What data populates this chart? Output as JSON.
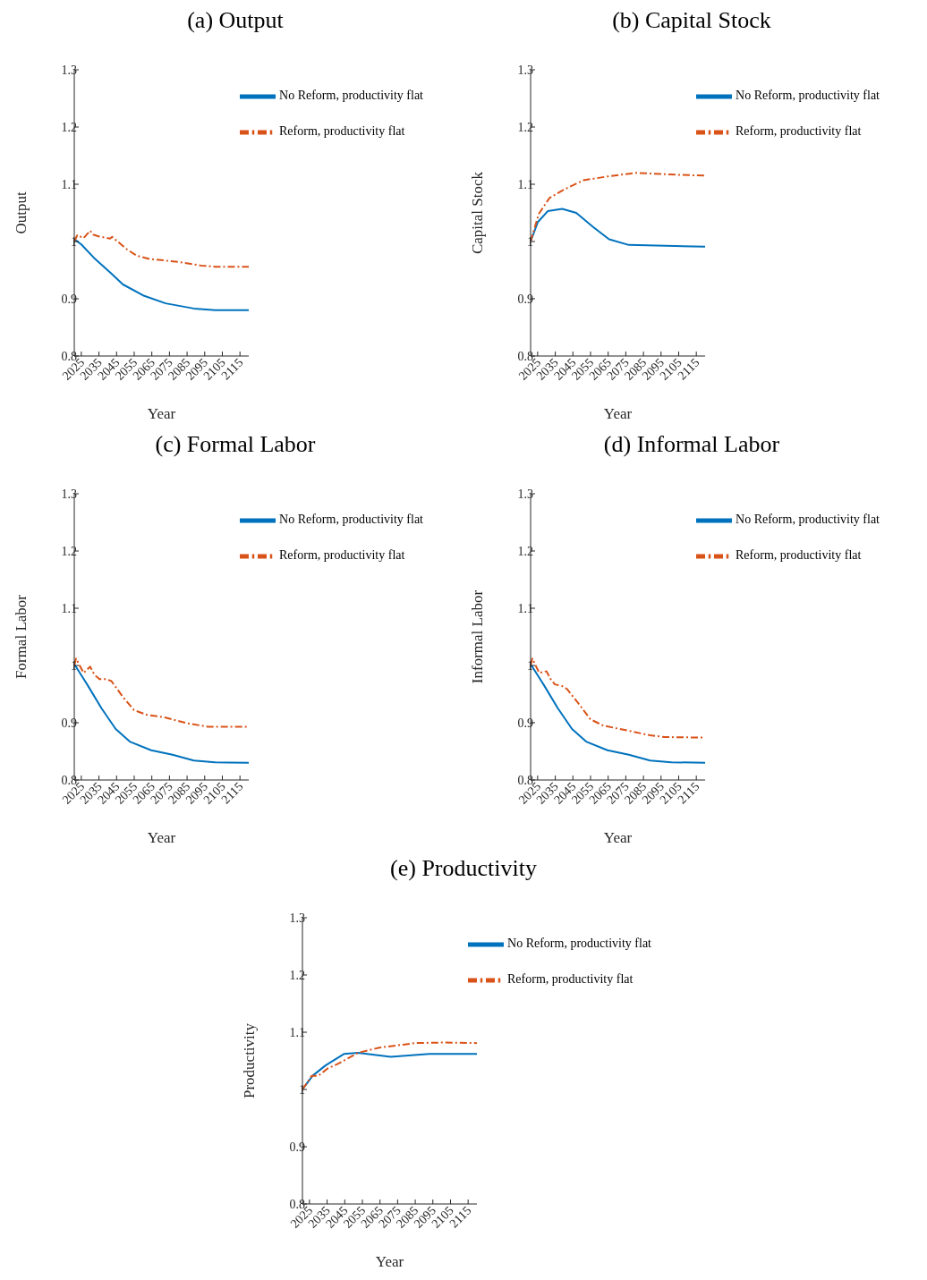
{
  "chart_data": [
    {
      "type": "line",
      "title": "(a) Output",
      "xlabel": "Year",
      "ylabel": "Output",
      "xlim": [
        2021,
        2120
      ],
      "xticks": [
        2025,
        2035,
        2045,
        2055,
        2065,
        2075,
        2085,
        2095,
        2105,
        2115
      ],
      "ylim": [
        0.8,
        1.3
      ],
      "yticks": [
        0.8,
        0.9,
        1,
        1.1,
        1.2,
        1.3
      ],
      "legend": "top right",
      "grid": false,
      "series": [
        {
          "name": "No Reform, productivity flat",
          "color": "#0072bd",
          "line_style": "solid",
          "x": [
            2021,
            2021.5,
            2025,
            2032,
            2042,
            2048.6,
            2060.7,
            2072.8,
            2088.8,
            2100.9,
            2120
          ],
          "values": [
            1.0,
            1.003,
            0.995,
            0.972,
            0.944,
            0.925,
            0.905,
            0.892,
            0.883,
            0.88,
            0.88
          ]
        },
        {
          "name": "Reform, productivity flat",
          "color": "#d95319",
          "line_style": "dashed",
          "x": [
            2021,
            2022.7,
            2026.3,
            2030,
            2031.7,
            2034.8,
            2041.3,
            2042.5,
            2051,
            2056.6,
            2063,
            2080.8,
            2092.9,
            2100.9,
            2120
          ],
          "values": [
            1.0,
            1.011,
            1.006,
            1.019,
            1.012,
            1.009,
            1.005,
            1.008,
            0.986,
            0.975,
            0.97,
            0.964,
            0.958,
            0.956,
            0.956
          ]
        }
      ]
    },
    {
      "type": "line",
      "title": "(b) Capital Stock",
      "xlabel": "Year",
      "ylabel": "Capital Stock",
      "xlim": [
        2021,
        2120
      ],
      "xticks": [
        2025,
        2035,
        2045,
        2055,
        2065,
        2075,
        2085,
        2095,
        2105,
        2115
      ],
      "ylim": [
        0.8,
        1.3
      ],
      "yticks": [
        0.8,
        0.9,
        1,
        1.1,
        1.2,
        1.3
      ],
      "legend": "top right",
      "grid": false,
      "series": [
        {
          "name": "No Reform, productivity flat",
          "color": "#0072bd",
          "line_style": "solid",
          "x": [
            2021,
            2025.1,
            2030.7,
            2038.9,
            2046.9,
            2056.6,
            2065.5,
            2076.7,
            2120
          ],
          "values": [
            1.0,
            1.034,
            1.053,
            1.057,
            1.05,
            1.025,
            1.004,
            0.994,
            0.991
          ]
        },
        {
          "name": "Reform, productivity flat",
          "color": "#d95319",
          "line_style": "dashed",
          "x": [
            2021,
            2025.6,
            2031.7,
            2038.9,
            2042.8,
            2051,
            2065.5,
            2080.8,
            2100.9,
            2120
          ],
          "values": [
            1.0,
            1.048,
            1.076,
            1.089,
            1.095,
            1.107,
            1.114,
            1.12,
            1.117,
            1.115
          ]
        }
      ]
    },
    {
      "type": "line",
      "title": "(c) Formal Labor",
      "xlabel": "Year",
      "ylabel": "Formal Labor",
      "xlim": [
        2021,
        2120
      ],
      "xticks": [
        2025,
        2035,
        2045,
        2055,
        2065,
        2075,
        2085,
        2095,
        2105,
        2115
      ],
      "ylim": [
        0.8,
        1.3
      ],
      "yticks": [
        0.8,
        0.9,
        1,
        1.1,
        1.2,
        1.3
      ],
      "legend": "top right",
      "grid": false,
      "series": [
        {
          "name": "No Reform, productivity flat",
          "color": "#0072bd",
          "line_style": "solid",
          "x": [
            2021,
            2021.5,
            2028.3,
            2036.5,
            2044.5,
            2052.5,
            2064.6,
            2076.7,
            2088.8,
            2100.9,
            2120
          ],
          "values": [
            1.0,
            1.0,
            0.967,
            0.925,
            0.889,
            0.867,
            0.852,
            0.844,
            0.834,
            0.831,
            0.83
          ]
        },
        {
          "name": "Reform, productivity flat",
          "color": "#d95319",
          "line_style": "dashed",
          "x": [
            2021,
            2022,
            2026.3,
            2030,
            2032.4,
            2035.3,
            2038.9,
            2042,
            2048.6,
            2054.9,
            2062,
            2072.8,
            2085,
            2097,
            2120
          ],
          "values": [
            1.0,
            1.012,
            0.987,
            0.998,
            0.984,
            0.976,
            0.976,
            0.973,
            0.945,
            0.922,
            0.914,
            0.909,
            0.899,
            0.893,
            0.893
          ]
        }
      ]
    },
    {
      "type": "line",
      "title": "(d) Informal Labor",
      "xlabel": "Year",
      "ylabel": "Informal Labor",
      "xlim": [
        2021,
        2120
      ],
      "xticks": [
        2025,
        2035,
        2045,
        2055,
        2065,
        2075,
        2085,
        2095,
        2105,
        2115
      ],
      "ylim": [
        0.8,
        1.3
      ],
      "yticks": [
        0.8,
        0.9,
        1,
        1.1,
        1.2,
        1.3
      ],
      "legend": "top right",
      "grid": false,
      "series": [
        {
          "name": "No Reform, productivity flat",
          "color": "#0072bd",
          "line_style": "solid",
          "x": [
            2021,
            2021.5,
            2028.3,
            2036.5,
            2044.5,
            2052.5,
            2064.6,
            2076.7,
            2088.8,
            2100.9,
            2120
          ],
          "values": [
            1.0,
            1.0,
            0.967,
            0.925,
            0.889,
            0.867,
            0.852,
            0.844,
            0.834,
            0.831,
            0.83
          ]
        },
        {
          "name": "Reform, productivity flat",
          "color": "#d95319",
          "line_style": "dashed",
          "x": [
            2021,
            2022,
            2025.9,
            2030,
            2032.4,
            2034.8,
            2038.9,
            2041.6,
            2048.6,
            2054.9,
            2062.2,
            2076.7,
            2088.8,
            2097,
            2120
          ],
          "values": [
            1.0,
            1.012,
            0.987,
            0.99,
            0.976,
            0.967,
            0.964,
            0.959,
            0.932,
            0.906,
            0.895,
            0.886,
            0.878,
            0.875,
            0.874
          ]
        }
      ]
    },
    {
      "type": "line",
      "title": "(e) Productivity",
      "xlabel": "Year",
      "ylabel": "Productivity",
      "xlim": [
        2021,
        2120
      ],
      "xticks": [
        2025,
        2035,
        2045,
        2055,
        2065,
        2075,
        2085,
        2095,
        2105,
        2115
      ],
      "ylim": [
        0.8,
        1.3
      ],
      "yticks": [
        0.8,
        0.9,
        1,
        1.1,
        1.2,
        1.3
      ],
      "legend": "top right",
      "grid": false,
      "series": [
        {
          "name": "No Reform, productivity flat",
          "color": "#0072bd",
          "line_style": "solid",
          "x": [
            2021,
            2026.8,
            2034.1,
            2044.5,
            2052.5,
            2071.1,
            2092.9,
            2120
          ],
          "values": [
            1.0,
            1.024,
            1.042,
            1.062,
            1.064,
            1.057,
            1.062,
            1.062
          ]
        },
        {
          "name": "Reform, productivity flat",
          "color": "#d95319",
          "line_style": "dashed",
          "x": [
            2021,
            2026.3,
            2030,
            2035.5,
            2041.3,
            2052.5,
            2064.6,
            2084.9,
            2100.9,
            2120
          ],
          "values": [
            1.0,
            1.024,
            1.024,
            1.037,
            1.045,
            1.064,
            1.073,
            1.081,
            1.082,
            1.081
          ]
        }
      ]
    }
  ]
}
